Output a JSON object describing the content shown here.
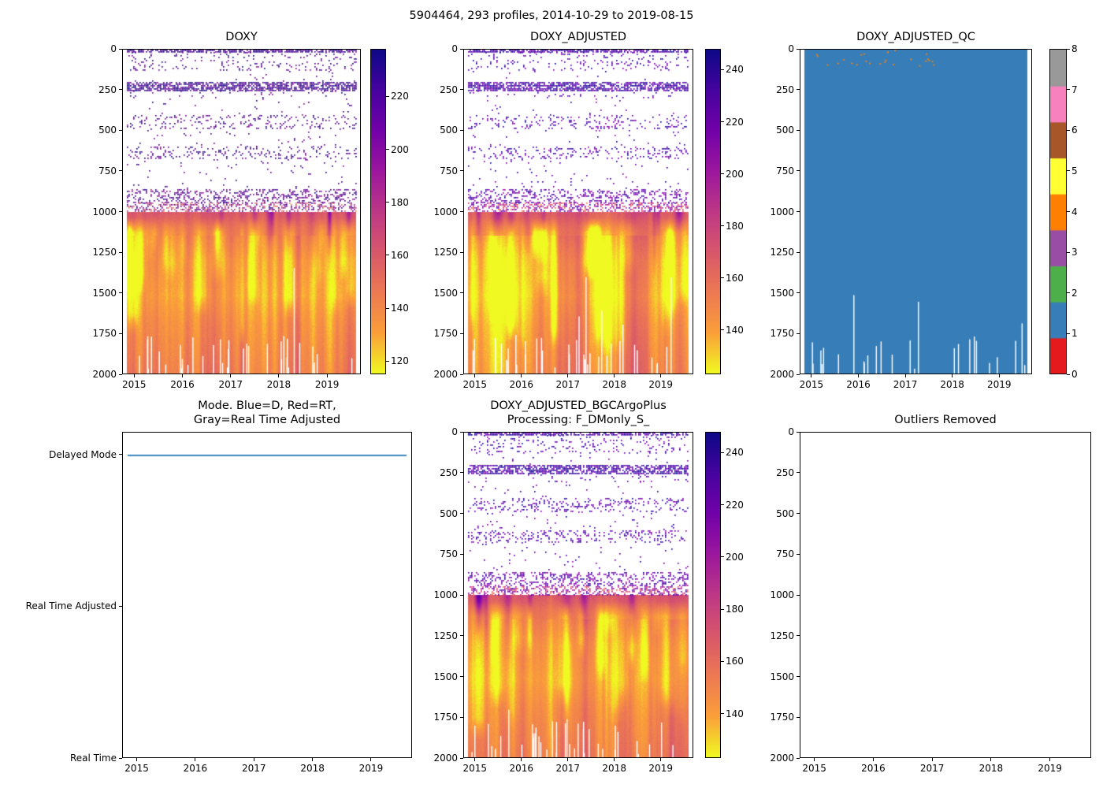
{
  "figure": {
    "title": "5904464, 293 profiles, 2014-10-29 to 2019-08-15"
  },
  "chart_data": [
    {
      "id": "doxy",
      "type": "heatmap",
      "title": "DOXY",
      "seed": 11,
      "x": {
        "range": [
          2014.75,
          2019.7
        ],
        "ticks": [
          2015,
          2016,
          2017,
          2018,
          2019
        ],
        "data_range": [
          2014.83,
          2019.62
        ]
      },
      "y": {
        "range": [
          0,
          2000
        ],
        "ticks": [
          0,
          250,
          500,
          750,
          1000,
          1250,
          1500,
          1750,
          2000
        ]
      },
      "colorbar": {
        "kind": "continuous",
        "colormap": "plasma_reversed",
        "range": [
          115,
          238
        ],
        "ticks": [
          120,
          140,
          160,
          180,
          200,
          220
        ]
      },
      "deep": {
        "top_depth": 1000,
        "base_profile": [
          [
            1000,
            162
          ],
          [
            1090,
            150
          ],
          [
            1300,
            137
          ],
          [
            1520,
            133
          ],
          [
            1700,
            139
          ],
          [
            2000,
            145
          ]
        ]
      },
      "surface_dot_bands": [
        {
          "depth": [
            0,
            14
          ],
          "density": 0.75,
          "values": [
            205,
            240
          ]
        },
        {
          "depth": [
            14,
            130
          ],
          "density": 0.11,
          "values": [
            200,
            238
          ]
        },
        {
          "depth": [
            130,
            200
          ],
          "density": 0.015,
          "values": [
            196,
            234
          ]
        },
        {
          "depth": [
            200,
            255
          ],
          "density": 0.7,
          "values": [
            202,
            242
          ]
        },
        {
          "depth": [
            255,
            300
          ],
          "density": 0.06,
          "values": [
            198,
            236
          ]
        },
        {
          "depth": [
            300,
            405
          ],
          "density": 0.015,
          "values": [
            196,
            234
          ]
        },
        {
          "depth": [
            405,
            485
          ],
          "density": 0.18,
          "values": [
            198,
            238
          ]
        },
        {
          "depth": [
            485,
            600
          ],
          "density": 0.018,
          "values": [
            196,
            234
          ]
        },
        {
          "depth": [
            600,
            675
          ],
          "density": 0.18,
          "values": [
            198,
            238
          ]
        },
        {
          "depth": [
            675,
            860
          ],
          "density": 0.018,
          "values": [
            196,
            234
          ]
        },
        {
          "depth": [
            860,
            945
          ],
          "density": 0.32,
          "values": [
            188,
            236
          ]
        },
        {
          "depth": [
            945,
            1000
          ],
          "density": 0.45,
          "values": [
            142,
            228
          ]
        }
      ]
    },
    {
      "id": "doxy_adjusted",
      "type": "heatmap",
      "title": "DOXY_ADJUSTED",
      "seed": 22,
      "x": {
        "range": [
          2014.75,
          2019.7
        ],
        "ticks": [
          2015,
          2016,
          2017,
          2018,
          2019
        ],
        "data_range": [
          2014.83,
          2019.62
        ]
      },
      "y": {
        "range": [
          0,
          2000
        ],
        "ticks": [
          0,
          250,
          500,
          750,
          1000,
          1250,
          1500,
          1750,
          2000
        ]
      },
      "colorbar": {
        "kind": "continuous",
        "colormap": "plasma_reversed",
        "range": [
          123,
          248
        ],
        "ticks": [
          140,
          160,
          180,
          200,
          220,
          240
        ]
      },
      "deep": {
        "top_depth": 1000,
        "base_profile": [
          [
            1000,
            171
          ],
          [
            1090,
            159
          ],
          [
            1300,
            146
          ],
          [
            1520,
            141
          ],
          [
            1700,
            147
          ],
          [
            2000,
            153
          ]
        ]
      },
      "surface_dot_bands": [
        {
          "depth": [
            0,
            14
          ],
          "density": 0.75,
          "values": [
            215,
            250
          ]
        },
        {
          "depth": [
            14,
            130
          ],
          "density": 0.11,
          "values": [
            210,
            248
          ]
        },
        {
          "depth": [
            130,
            200
          ],
          "density": 0.015,
          "values": [
            206,
            244
          ]
        },
        {
          "depth": [
            200,
            255
          ],
          "density": 0.7,
          "values": [
            212,
            252
          ]
        },
        {
          "depth": [
            255,
            300
          ],
          "density": 0.06,
          "values": [
            208,
            246
          ]
        },
        {
          "depth": [
            300,
            405
          ],
          "density": 0.015,
          "values": [
            206,
            244
          ]
        },
        {
          "depth": [
            405,
            485
          ],
          "density": 0.18,
          "values": [
            208,
            248
          ]
        },
        {
          "depth": [
            485,
            600
          ],
          "density": 0.018,
          "values": [
            206,
            244
          ]
        },
        {
          "depth": [
            600,
            675
          ],
          "density": 0.18,
          "values": [
            208,
            248
          ]
        },
        {
          "depth": [
            675,
            860
          ],
          "density": 0.018,
          "values": [
            206,
            244
          ]
        },
        {
          "depth": [
            860,
            945
          ],
          "density": 0.32,
          "values": [
            198,
            246
          ]
        },
        {
          "depth": [
            945,
            1000
          ],
          "density": 0.45,
          "values": [
            152,
            238
          ]
        }
      ]
    },
    {
      "id": "doxy_adjusted_qc",
      "type": "qc",
      "title": "DOXY_ADJUSTED_QC",
      "seed": 33,
      "x": {
        "range": [
          2014.75,
          2019.7
        ],
        "ticks": [
          2015,
          2016,
          2017,
          2018,
          2019
        ],
        "data_range": [
          2014.83,
          2019.62
        ]
      },
      "y": {
        "range": [
          0,
          2000
        ],
        "ticks": [
          0,
          250,
          500,
          750,
          1000,
          1250,
          1500,
          1750,
          2000
        ]
      },
      "fill_qc_value": 1,
      "qc_anomalies": {
        "value": 4,
        "count": 26,
        "depth_range": [
          0,
          100
        ]
      },
      "colorbar": {
        "kind": "discrete",
        "ticks": [
          0,
          1,
          2,
          3,
          4,
          5,
          6,
          7,
          8
        ],
        "colors": [
          "#e41a1c",
          "#377eb8",
          "#4daf4a",
          "#984ea3",
          "#ff7f00",
          "#ffff33",
          "#a65628",
          "#f781bf",
          "#999999"
        ]
      }
    },
    {
      "id": "mode",
      "type": "category-line",
      "title": "Mode. Blue=D, Red=RT,\nGray=Real Time Adjusted",
      "x": {
        "range": [
          2014.75,
          2019.7
        ],
        "ticks": [
          2015,
          2016,
          2017,
          2018,
          2019
        ],
        "data_range": [
          2014.83,
          2019.62
        ]
      },
      "categories": [
        {
          "label": "Delayed Mode",
          "pos": 0.07
        },
        {
          "label": "Real Time Adjusted",
          "pos": 0.535
        },
        {
          "label": "Real Time",
          "pos": 1.0
        }
      ],
      "line": {
        "at": "Delayed Mode",
        "color": "#1f77b4"
      }
    },
    {
      "id": "doxy_adjusted_bgcargoplus",
      "type": "heatmap",
      "title": "DOXY_ADJUSTED_BGCArgoPlus\nProcessing: F_DMonly_S_",
      "seed": 44,
      "x": {
        "range": [
          2014.75,
          2019.7
        ],
        "ticks": [
          2015,
          2016,
          2017,
          2018,
          2019
        ],
        "data_range": [
          2014.83,
          2019.62
        ]
      },
      "y": {
        "range": [
          0,
          2000
        ],
        "ticks": [
          0,
          250,
          500,
          750,
          1000,
          1250,
          1500,
          1750,
          2000
        ]
      },
      "colorbar": {
        "kind": "continuous",
        "colormap": "plasma_reversed",
        "range": [
          123,
          248
        ],
        "ticks": [
          140,
          160,
          180,
          200,
          220,
          240
        ]
      },
      "deep": {
        "top_depth": 1000,
        "base_profile": [
          [
            1000,
            171
          ],
          [
            1090,
            159
          ],
          [
            1300,
            146
          ],
          [
            1520,
            141
          ],
          [
            1700,
            147
          ],
          [
            2000,
            153
          ]
        ]
      },
      "surface_dot_bands": [
        {
          "depth": [
            0,
            14
          ],
          "density": 0.75,
          "values": [
            215,
            250
          ]
        },
        {
          "depth": [
            14,
            130
          ],
          "density": 0.11,
          "values": [
            210,
            248
          ]
        },
        {
          "depth": [
            130,
            200
          ],
          "density": 0.015,
          "values": [
            206,
            244
          ]
        },
        {
          "depth": [
            200,
            255
          ],
          "density": 0.7,
          "values": [
            212,
            252
          ]
        },
        {
          "depth": [
            255,
            300
          ],
          "density": 0.06,
          "values": [
            208,
            246
          ]
        },
        {
          "depth": [
            300,
            405
          ],
          "density": 0.015,
          "values": [
            206,
            244
          ]
        },
        {
          "depth": [
            405,
            485
          ],
          "density": 0.18,
          "values": [
            208,
            248
          ]
        },
        {
          "depth": [
            485,
            600
          ],
          "density": 0.018,
          "values": [
            206,
            244
          ]
        },
        {
          "depth": [
            600,
            675
          ],
          "density": 0.18,
          "values": [
            208,
            248
          ]
        },
        {
          "depth": [
            675,
            860
          ],
          "density": 0.018,
          "values": [
            206,
            244
          ]
        },
        {
          "depth": [
            860,
            945
          ],
          "density": 0.32,
          "values": [
            198,
            246
          ]
        },
        {
          "depth": [
            945,
            1000
          ],
          "density": 0.45,
          "values": [
            152,
            238
          ]
        }
      ]
    },
    {
      "id": "outliers_removed",
      "type": "empty",
      "title": "Outliers Removed",
      "x": {
        "range": [
          2014.75,
          2019.7
        ],
        "ticks": [
          2015,
          2016,
          2017,
          2018,
          2019
        ],
        "data_range": [
          2014.83,
          2019.62
        ]
      },
      "y": {
        "range": [
          0,
          2000
        ],
        "ticks": [
          0,
          250,
          500,
          750,
          1000,
          1250,
          1500,
          1750,
          2000
        ]
      }
    }
  ]
}
